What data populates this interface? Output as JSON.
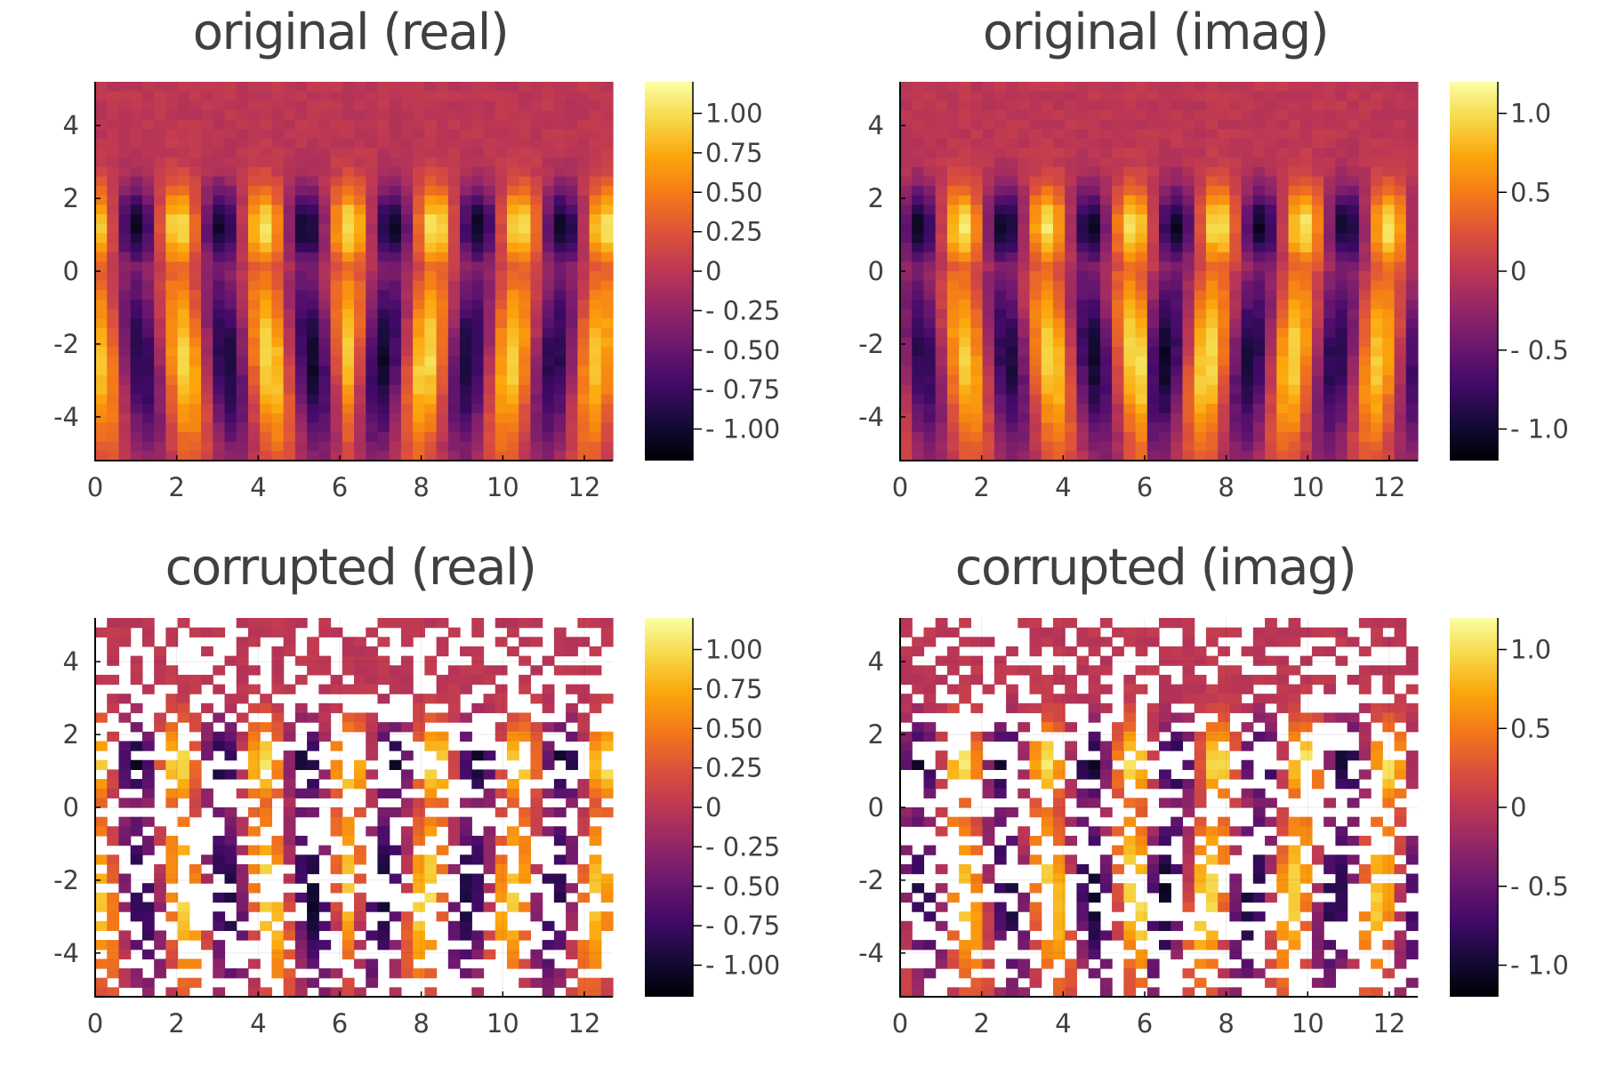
{
  "figure": {
    "background": "#ffffff",
    "colormap": "inferno"
  },
  "chart_data": [
    {
      "type": "heatmap",
      "title": "original (real)",
      "xlabel": "",
      "ylabel": "",
      "xlim": [
        0,
        12.7
      ],
      "ylim": [
        -5.2,
        5.2
      ],
      "xticks": [
        0,
        2,
        4,
        6,
        8,
        10,
        12
      ],
      "xtick_labels": [
        "0",
        "2",
        "4",
        "6",
        "8",
        "10",
        "12"
      ],
      "yticks": [
        -4,
        -2,
        0,
        2,
        4
      ],
      "ytick_labels": [
        "-4",
        "-2",
        "0",
        "2",
        "4"
      ],
      "colorbar": {
        "range": [
          -1.2,
          1.2
        ],
        "ticks": [
          1.0,
          0.75,
          0.5,
          0.25,
          0,
          -0.25,
          -0.5,
          -0.75,
          -1.0
        ],
        "tick_labels": [
          "1.00",
          "0.75",
          "0.50",
          "0.25",
          "0",
          "- 0.25",
          "- 0.50",
          "- 0.75",
          "- 1.00"
        ]
      },
      "grid": {
        "nx": 44,
        "ny": 40
      },
      "field": {
        "part": "real",
        "kx": 3.0,
        "wave_freq": 2.25,
        "lower_decay": 0.18
      },
      "corrupted": false,
      "grid_lines": false
    },
    {
      "type": "heatmap",
      "title": "original (imag)",
      "xlabel": "",
      "ylabel": "",
      "xlim": [
        0,
        12.7
      ],
      "ylim": [
        -5.2,
        5.2
      ],
      "xticks": [
        0,
        2,
        4,
        6,
        8,
        10,
        12
      ],
      "xtick_labels": [
        "0",
        "2",
        "4",
        "6",
        "8",
        "10",
        "12"
      ],
      "yticks": [
        -4,
        -2,
        0,
        2,
        4
      ],
      "ytick_labels": [
        "-4",
        "-2",
        "0",
        "2",
        "4"
      ],
      "colorbar": {
        "range": [
          -1.2,
          1.2
        ],
        "ticks": [
          1.0,
          0.5,
          0,
          -0.5,
          -1.0
        ],
        "tick_labels": [
          "1.0",
          "0.5",
          "0",
          "- 0.5",
          "- 1.0"
        ]
      },
      "grid": {
        "nx": 44,
        "ny": 40
      },
      "field": {
        "part": "imag",
        "kx": 3.0,
        "wave_freq": 2.25,
        "lower_decay": 0.18
      },
      "corrupted": false,
      "grid_lines": false
    },
    {
      "type": "heatmap",
      "title": "corrupted (real)",
      "xlabel": "",
      "ylabel": "",
      "xlim": [
        0,
        12.7
      ],
      "ylim": [
        -5.2,
        5.2
      ],
      "xticks": [
        0,
        2,
        4,
        6,
        8,
        10,
        12
      ],
      "xtick_labels": [
        "0",
        "2",
        "4",
        "6",
        "8",
        "10",
        "12"
      ],
      "yticks": [
        -4,
        -2,
        0,
        2,
        4
      ],
      "ytick_labels": [
        "-4",
        "-2",
        "0",
        "2",
        "4"
      ],
      "colorbar": {
        "range": [
          -1.2,
          1.2
        ],
        "ticks": [
          1.0,
          0.75,
          0.5,
          0.25,
          0,
          -0.25,
          -0.5,
          -0.75,
          -1.0
        ],
        "tick_labels": [
          "1.00",
          "0.75",
          "0.50",
          "0.25",
          "0",
          "- 0.25",
          "- 0.50",
          "- 0.75",
          "- 1.00"
        ]
      },
      "grid": {
        "nx": 44,
        "ny": 40
      },
      "field": {
        "part": "real",
        "kx": 3.0,
        "wave_freq": 2.25,
        "lower_decay": 0.18
      },
      "corrupted": true,
      "missing_fraction": 0.5,
      "grid_lines": true
    },
    {
      "type": "heatmap",
      "title": "corrupted (imag)",
      "xlabel": "",
      "ylabel": "",
      "xlim": [
        0,
        12.7
      ],
      "ylim": [
        -5.2,
        5.2
      ],
      "xticks": [
        0,
        2,
        4,
        6,
        8,
        10,
        12
      ],
      "xtick_labels": [
        "0",
        "2",
        "4",
        "6",
        "8",
        "10",
        "12"
      ],
      "yticks": [
        -4,
        -2,
        0,
        2,
        4
      ],
      "ytick_labels": [
        "-4",
        "-2",
        "0",
        "2",
        "4"
      ],
      "colorbar": {
        "range": [
          -1.2,
          1.2
        ],
        "ticks": [
          1.0,
          0.5,
          0,
          -0.5,
          -1.0
        ],
        "tick_labels": [
          "1.0",
          "0.5",
          "0",
          "- 0.5",
          "- 1.0"
        ]
      },
      "grid": {
        "nx": 44,
        "ny": 40
      },
      "field": {
        "part": "imag",
        "kx": 3.0,
        "wave_freq": 2.25,
        "lower_decay": 0.18
      },
      "corrupted": true,
      "missing_fraction": 0.5,
      "grid_lines": true
    }
  ]
}
